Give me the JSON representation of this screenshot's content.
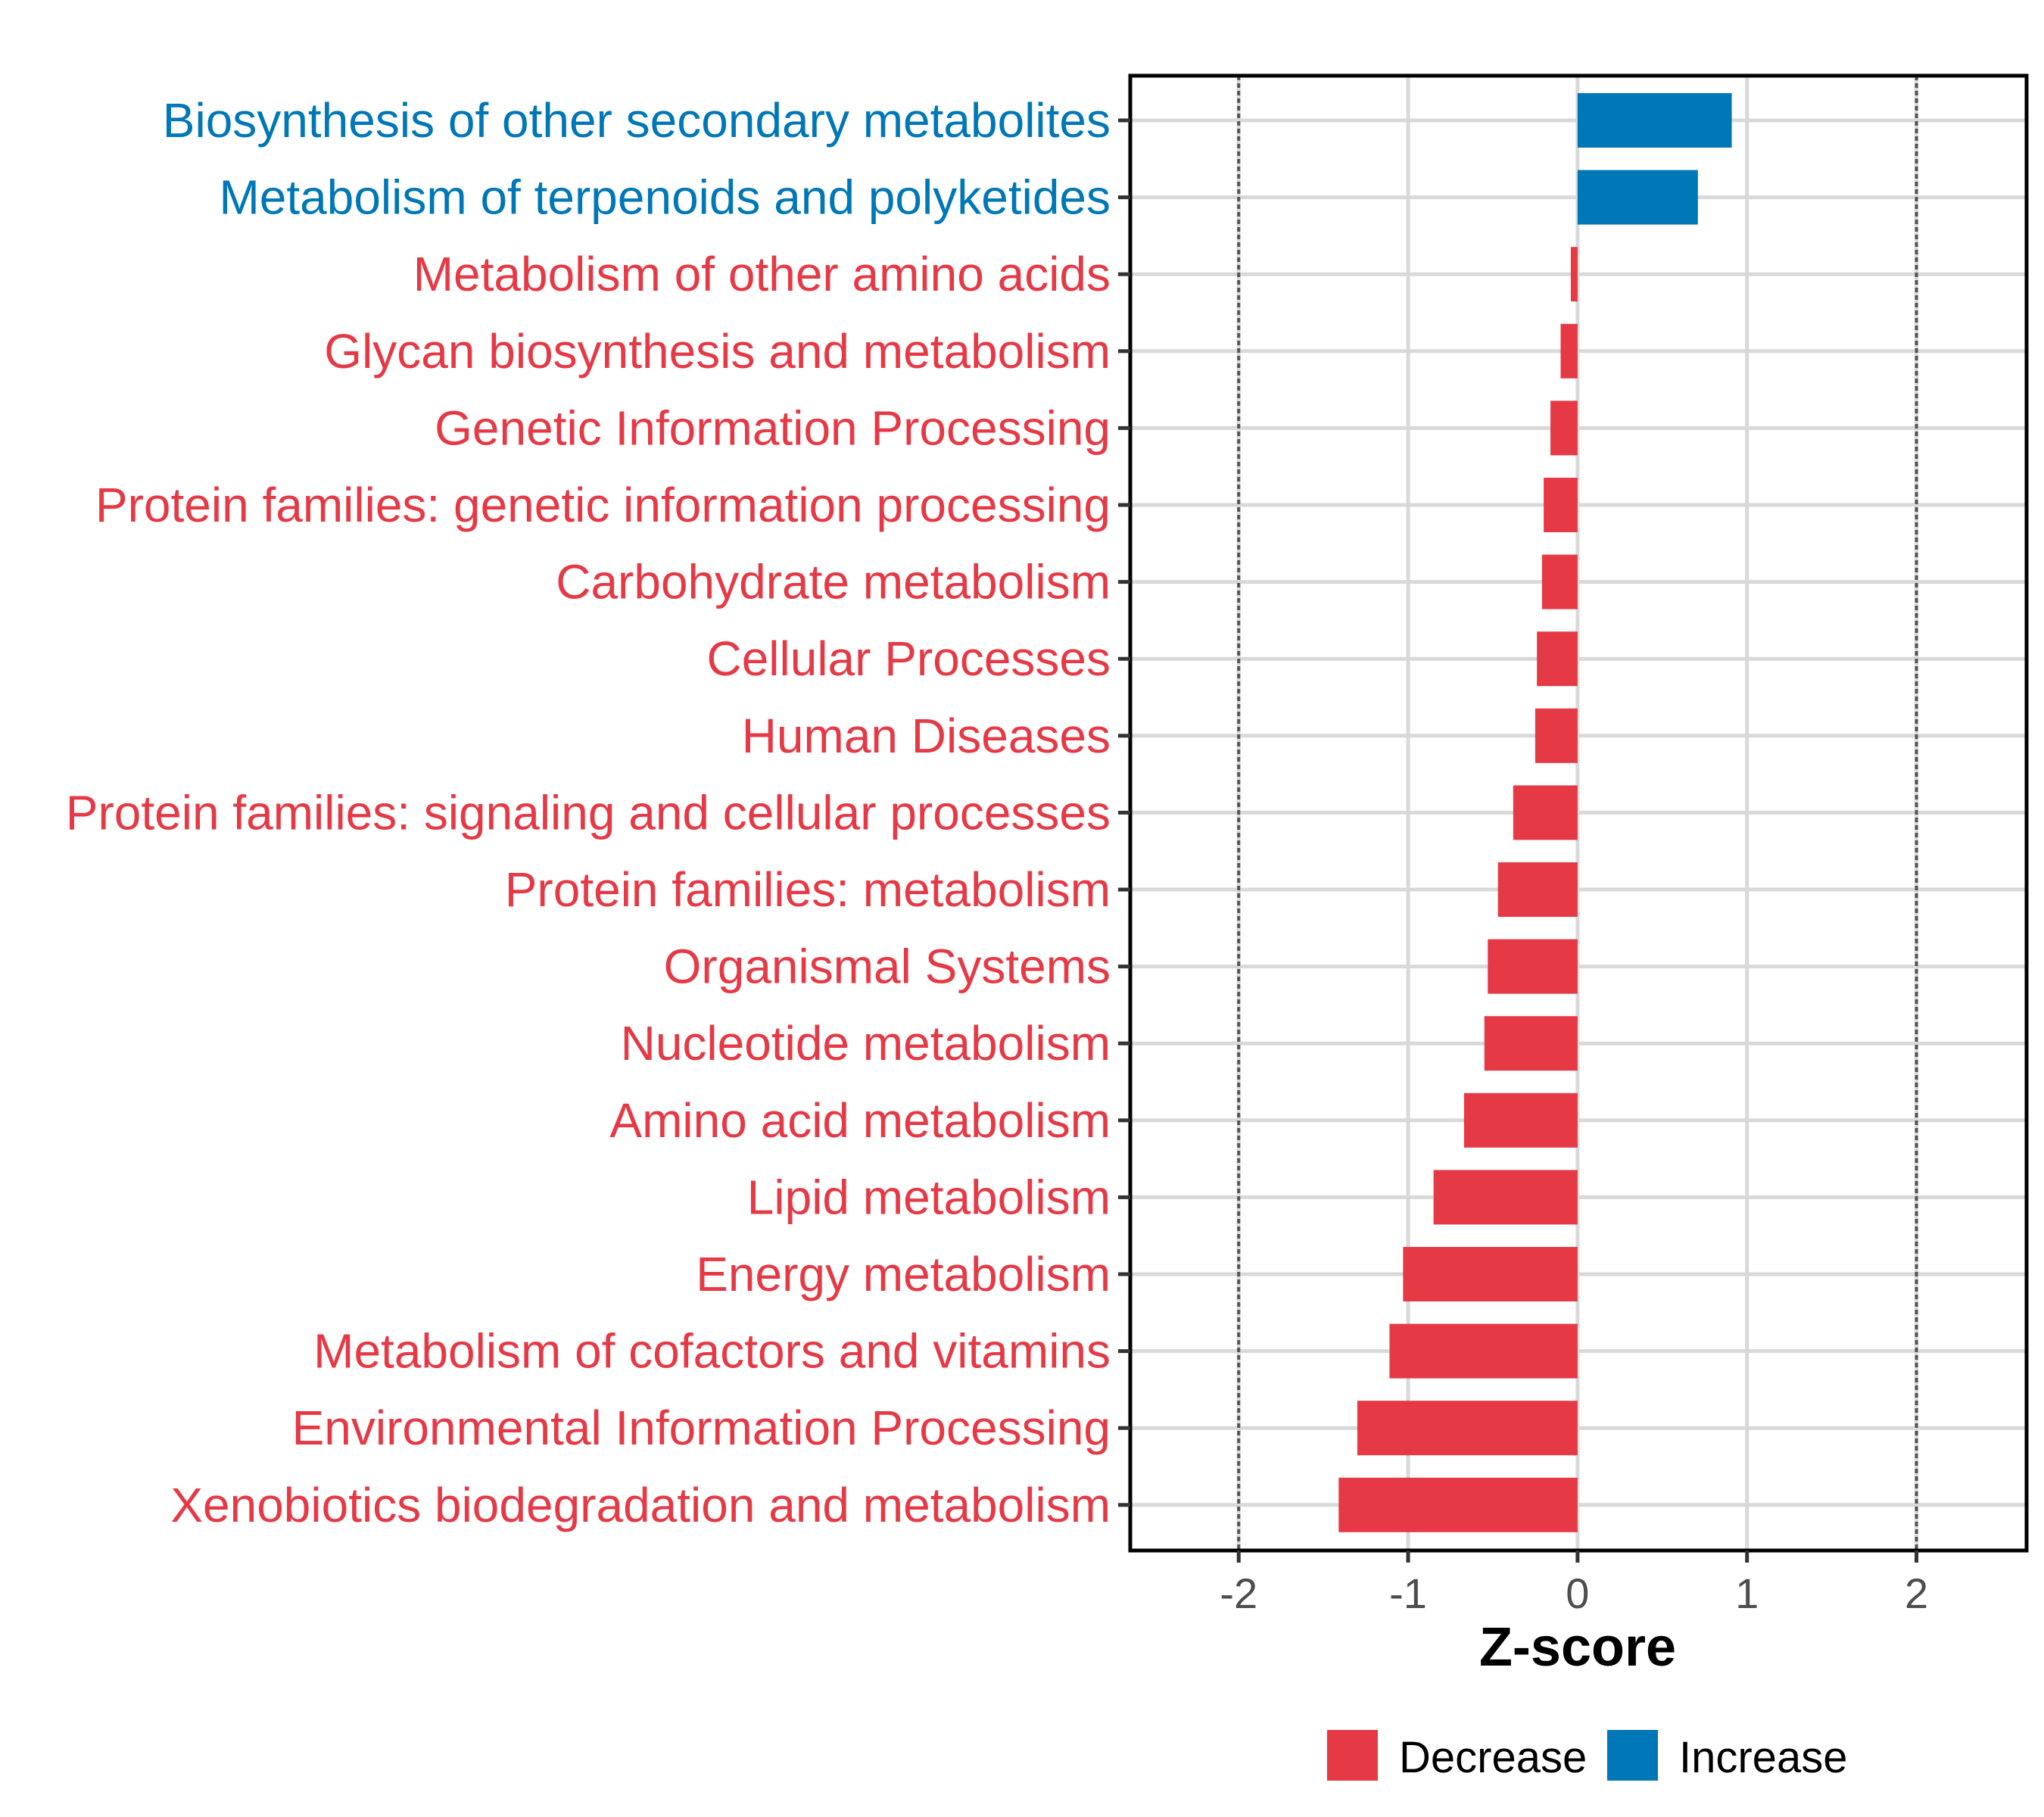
{
  "chart_data": {
    "type": "bar",
    "orientation": "horizontal",
    "title": "",
    "xlabel": "Z-score",
    "ylabel": "",
    "xlim": [
      -2.64,
      2.65
    ],
    "xticks": [
      -2,
      -1,
      0,
      1,
      2
    ],
    "xtick_labels": [
      "-2",
      "-1",
      "0",
      "1",
      "2"
    ],
    "reference_lines": [
      -2,
      2
    ],
    "grid": true,
    "legend_position": "bottom",
    "legend": [
      {
        "key": "Decrease",
        "label": "Decrease",
        "color": "#E63946"
      },
      {
        "key": "Increase",
        "label": "Increase",
        "color": "#0077B6"
      }
    ],
    "categories": [
      "Biosynthesis of other secondary metabolites",
      "Metabolism of terpenoids and polyketides",
      "Metabolism of other amino acids",
      "Glycan biosynthesis and metabolism",
      "Genetic Information Processing",
      "Protein families: genetic information processing",
      "Carbohydrate metabolism",
      "Cellular Processes",
      "Human Diseases",
      "Protein families: signaling and cellular processes",
      "Protein families: metabolism",
      "Organismal Systems",
      "Nucleotide metabolism",
      "Amino acid metabolism",
      "Lipid metabolism",
      "Energy metabolism",
      "Metabolism of cofactors and vitamins",
      "Environmental Information Processing",
      "Xenobiotics biodegradation and metabolism"
    ],
    "values": [
      0.91,
      0.71,
      -0.04,
      -0.1,
      -0.16,
      -0.2,
      -0.21,
      -0.24,
      -0.25,
      -0.38,
      -0.47,
      -0.53,
      -0.55,
      -0.67,
      -0.85,
      -1.03,
      -1.11,
      -1.3,
      -1.41
    ],
    "groups": [
      "Increase",
      "Increase",
      "Decrease",
      "Decrease",
      "Decrease",
      "Decrease",
      "Decrease",
      "Decrease",
      "Decrease",
      "Decrease",
      "Decrease",
      "Decrease",
      "Decrease",
      "Decrease",
      "Decrease",
      "Decrease",
      "Decrease",
      "Decrease",
      "Decrease"
    ]
  }
}
